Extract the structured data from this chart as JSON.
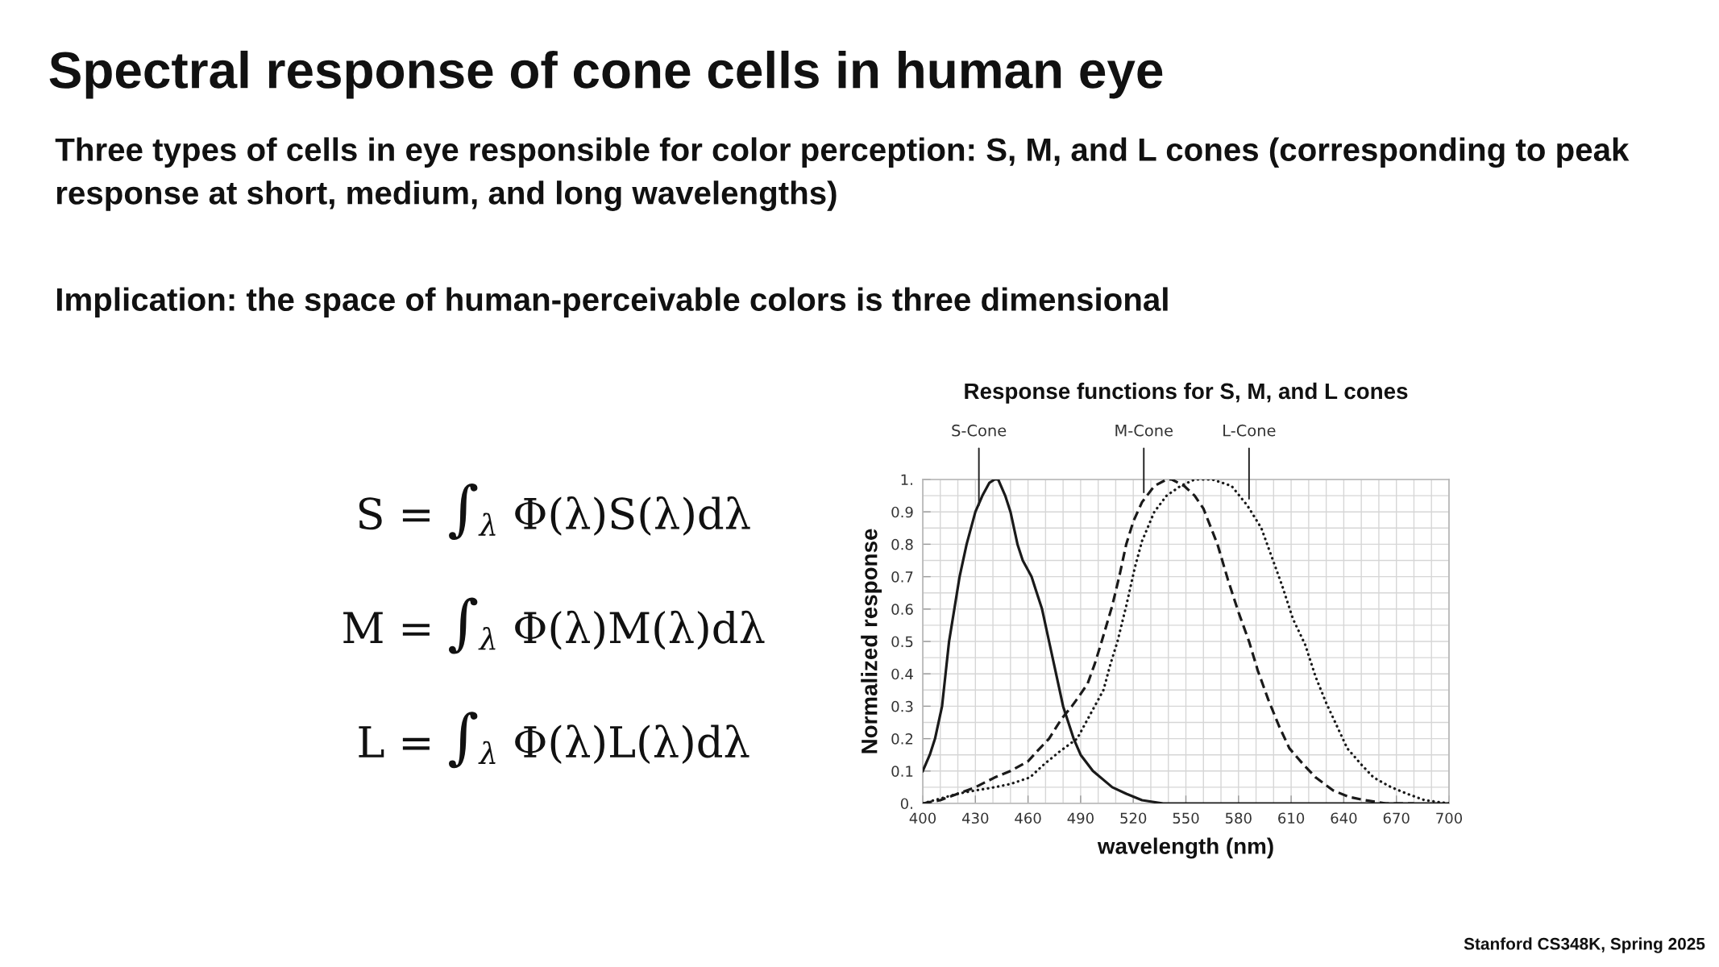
{
  "chart_data": [
    {
      "type": "other",
      "title": "Spectral response of cone cells in human eye",
      "annotations": [
        "Three types of cells in eye responsible for color perception: S, M, and L cones (corresponding to peak response at short, medium, and long wavelengths)",
        "Implication: the space of human-perceivable colors is three dimensional",
        "Stanford CS348K, Spring 2025"
      ]
    },
    {
      "type": "other",
      "annotations": [
        "S = ∫$_{λ}$ Φ(λ)S(λ)dλ",
        "M = ∫$_{λ}$ Φ(λ)M(λ)dλ",
        "L = ∫$_{λ}$ Φ(λ)L(λ)dλ"
      ]
    },
    {
      "type": "line",
      "title": "Response functions for S, M, and L cones",
      "xlabel": "wavelength (nm)",
      "ylabel": "Normalized response",
      "xlim": [
        400,
        700
      ],
      "ylim": [
        0,
        1
      ],
      "xticks": [
        400,
        {
          "value": 410,
          "label": null
        },
        {
          "value": 420,
          "label": null
        },
        430,
        {
          "value": 440,
          "label": null
        },
        {
          "value": 450,
          "label": null
        },
        460,
        {
          "value": 470,
          "label": null
        },
        {
          "value": 480,
          "label": null
        },
        490,
        {
          "value": 500,
          "label": null
        },
        {
          "value": 510,
          "label": null
        },
        520,
        {
          "value": 530,
          "label": null
        },
        {
          "value": 540,
          "label": null
        },
        550,
        {
          "value": 560,
          "label": null
        },
        {
          "value": 570,
          "label": null
        },
        580,
        {
          "value": 590,
          "label": null
        },
        {
          "value": 600,
          "label": null
        },
        610,
        {
          "value": 620,
          "label": null
        },
        {
          "value": 630,
          "label": null
        },
        640,
        {
          "value": 650,
          "label": null
        },
        {
          "value": 660,
          "label": null
        },
        670,
        {
          "value": 680,
          "label": null
        },
        {
          "value": 690,
          "label": null
        },
        700
      ],
      "yticks": [
        {
          "value": 0,
          "label": "0."
        },
        {
          "value": 0.05,
          "label": null
        },
        0.1,
        {
          "value": 0.15,
          "label": null
        },
        0.2,
        {
          "value": 0.25,
          "label": null
        },
        0.3,
        {
          "value": 0.35,
          "label": null
        },
        0.4,
        {
          "value": 0.45,
          "label": null
        },
        0.5,
        {
          "value": 0.55,
          "label": null
        },
        0.6,
        {
          "value": 0.65,
          "label": null
        },
        0.7,
        {
          "value": 0.75,
          "label": null
        },
        0.8,
        {
          "value": 0.85,
          "label": null
        },
        0.9,
        {
          "value": 0.95,
          "label": null
        },
        {
          "value": 1,
          "label": "1."
        }
      ],
      "grid": true,
      "series": [
        {
          "color": "#1a1a1a",
          "line_style": "solid",
          "x": [
            400,
            404,
            407,
            411,
            413,
            415,
            418,
            421,
            425,
            430,
            434,
            438,
            441,
            443,
            447,
            450,
            454,
            457,
            462,
            465,
            468,
            472,
            476,
            480,
            486,
            490,
            497,
            508,
            516,
            525,
            537,
            700
          ],
          "values": [
            0.1,
            0.15,
            0.2,
            0.3,
            0.4,
            0.5,
            0.6,
            0.7,
            0.8,
            0.9,
            0.95,
            0.99,
            1.0,
            1.0,
            0.95,
            0.9,
            0.8,
            0.75,
            0.7,
            0.65,
            0.6,
            0.5,
            0.4,
            0.3,
            0.2,
            0.15,
            0.1,
            0.05,
            0.03,
            0.01,
            0,
            0
          ]
        },
        {
          "color": "#1a1a1a",
          "line_style": "dashed",
          "x": [
            400,
            410,
            420,
            430,
            441,
            450,
            460,
            465,
            472,
            479,
            485,
            489,
            494,
            498,
            502,
            508,
            512,
            516,
            520,
            525,
            532,
            539,
            542,
            549,
            555,
            560,
            568,
            574,
            580,
            586,
            591,
            597,
            603,
            609,
            617,
            624,
            634,
            643,
            652,
            664,
            680
          ],
          "values": [
            0,
            0.01,
            0.03,
            0.05,
            0.08,
            0.1,
            0.13,
            0.16,
            0.2,
            0.26,
            0.3,
            0.33,
            0.37,
            0.43,
            0.5,
            0.61,
            0.7,
            0.8,
            0.87,
            0.93,
            0.98,
            1.0,
            1.0,
            0.98,
            0.95,
            0.91,
            0.8,
            0.69,
            0.59,
            0.5,
            0.41,
            0.32,
            0.24,
            0.17,
            0.12,
            0.08,
            0.04,
            0.02,
            0.01,
            0,
            0
          ]
        },
        {
          "color": "#1a1a1a",
          "line_style": "dotted",
          "x": [
            400,
            420,
            430,
            441,
            450,
            461,
            469,
            478,
            488,
            495,
            503,
            507,
            511,
            516,
            521,
            525,
            532,
            539,
            547,
            555,
            565,
            576,
            585,
            593,
            599,
            605,
            611,
            618,
            624,
            630,
            636,
            642,
            650,
            657,
            667,
            676,
            686,
            700
          ],
          "values": [
            0,
            0.03,
            0.04,
            0.05,
            0.06,
            0.08,
            0.12,
            0.16,
            0.2,
            0.27,
            0.35,
            0.43,
            0.5,
            0.61,
            0.73,
            0.81,
            0.9,
            0.95,
            0.98,
            1.0,
            1.0,
            0.98,
            0.92,
            0.85,
            0.76,
            0.67,
            0.57,
            0.49,
            0.39,
            0.31,
            0.24,
            0.17,
            0.12,
            0.08,
            0.05,
            0.03,
            0.01,
            0
          ]
        }
      ],
      "annotations": [
        {
          "text": "S-Cone",
          "x": 432,
          "y": 0.91
        },
        {
          "text": "M-Cone",
          "x": 526,
          "y": 0.95
        },
        {
          "text": "L-Cone",
          "x": 586,
          "y": 0.93
        }
      ]
    }
  ]
}
